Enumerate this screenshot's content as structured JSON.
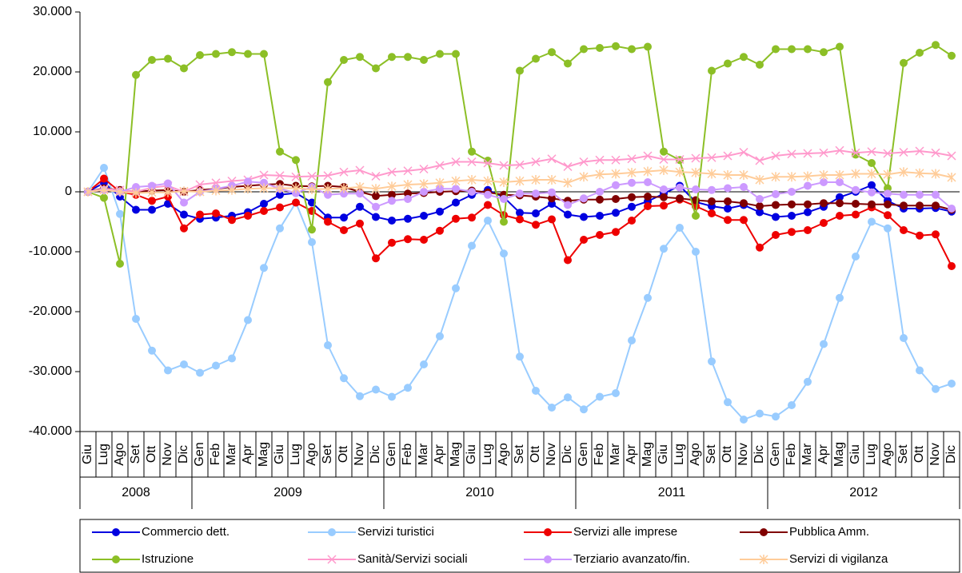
{
  "chart_data": {
    "type": "line",
    "category_groups": [
      {
        "label": "2008",
        "categories": [
          "Giu",
          "Lug",
          "Ago",
          "Set",
          "Ott",
          "Nov",
          "Dic"
        ]
      },
      {
        "label": "2009",
        "categories": [
          "Gen",
          "Feb",
          "Mar",
          "Apr",
          "Mag",
          "Giu",
          "Lug",
          "Ago",
          "Set",
          "Ott",
          "Nov",
          "Dic"
        ]
      },
      {
        "label": "2010",
        "categories": [
          "Gen",
          "Feb",
          "Mar",
          "Apr",
          "Mag",
          "Giu",
          "Lug",
          "Ago",
          "Set",
          "Ott",
          "Nov",
          "Dic"
        ]
      },
      {
        "label": "2011",
        "categories": [
          "Gen",
          "Feb",
          "Mar",
          "Apr",
          "Mag",
          "Giu",
          "Lug",
          "Ago",
          "Set",
          "Ott",
          "Nov",
          "Dic"
        ]
      },
      {
        "label": "2012",
        "categories": [
          "Gen",
          "Feb",
          "Mar",
          "Apr",
          "Mag",
          "Giu",
          "Lug",
          "Ago",
          "Set",
          "Ott",
          "Nov",
          "Dic"
        ]
      }
    ],
    "ylim": [
      -40000,
      30000
    ],
    "yticks": [
      {
        "value": -40000,
        "label": "-40.000"
      },
      {
        "value": -30000,
        "label": "-30.000"
      },
      {
        "value": -20000,
        "label": "-20.000"
      },
      {
        "value": -10000,
        "label": "-10.000"
      },
      {
        "value": 0,
        "label": "0"
      },
      {
        "value": 10000,
        "label": "10.000"
      },
      {
        "value": 20000,
        "label": "20.000"
      },
      {
        "value": 30000,
        "label": "30.000"
      }
    ],
    "grid": false,
    "series": [
      {
        "name": "Commercio dett.",
        "color": "#0000e0",
        "marker": "circle",
        "values": [
          0,
          1500,
          -800,
          -3000,
          -3000,
          -2000,
          -3800,
          -4500,
          -4300,
          -4000,
          -3400,
          -2000,
          -500,
          -200,
          -1800,
          -4300,
          -4300,
          -2500,
          -4200,
          -4800,
          -4500,
          -4000,
          -3300,
          -1800,
          -500,
          300,
          -900,
          -3500,
          -3600,
          -2000,
          -3800,
          -4200,
          -4000,
          -3500,
          -2500,
          -1600,
          -300,
          1000,
          -1700,
          -2400,
          -2800,
          -2200,
          -3400,
          -4200,
          -4000,
          -3400,
          -2500,
          -900,
          0,
          1100,
          -1500,
          -2800,
          -2800,
          -2700,
          -3300
        ]
      },
      {
        "name": "Servizi turistici",
        "color": "#99ccff",
        "marker": "circle",
        "values": [
          0,
          4000,
          -3700,
          -21200,
          -26500,
          -29800,
          -28800,
          -30200,
          -29000,
          -27800,
          -21400,
          -12700,
          -6100,
          -1800,
          -8400,
          -25600,
          -31100,
          -34100,
          -33000,
          -34200,
          -32700,
          -28800,
          -24100,
          -16100,
          -9000,
          -4800,
          -10300,
          -27500,
          -33200,
          -36000,
          -34300,
          -36300,
          -34200,
          -33600,
          -24800,
          -17700,
          -9500,
          -6000,
          -10000,
          -28300,
          -35100,
          -38000,
          -37000,
          -37500,
          -35600,
          -31700,
          -25400,
          -17700,
          -10800,
          -5000,
          -6100,
          -24400,
          -29800,
          -32900,
          -32000
        ]
      },
      {
        "name": "Servizi alle imprese",
        "color": "#ee0000",
        "marker": "circle",
        "values": [
          0,
          2200,
          0,
          -500,
          -1500,
          -800,
          -6100,
          -3800,
          -3600,
          -4700,
          -4000,
          -3200,
          -2600,
          -1800,
          -3200,
          -5000,
          -6400,
          -5300,
          -11100,
          -8500,
          -7900,
          -8000,
          -6500,
          -4500,
          -4300,
          -2200,
          -3900,
          -4600,
          -5500,
          -4600,
          -11400,
          -8000,
          -7200,
          -6700,
          -4800,
          -2400,
          -2300,
          -1300,
          -2400,
          -3600,
          -4700,
          -4700,
          -9300,
          -7200,
          -6700,
          -6400,
          -5200,
          -4000,
          -3800,
          -2600,
          -3900,
          -6400,
          -7300,
          -7100,
          -12400
        ]
      },
      {
        "name": "Pubblica Amm.",
        "color": "#800000",
        "marker": "circle",
        "values": [
          0,
          600,
          300,
          0,
          200,
          300,
          0,
          300,
          500,
          800,
          1000,
          1200,
          1300,
          1000,
          900,
          1000,
          800,
          0,
          -700,
          -500,
          -300,
          -200,
          0,
          100,
          200,
          -100,
          -500,
          -600,
          -800,
          -1100,
          -1500,
          -1300,
          -1300,
          -1200,
          -900,
          -800,
          -900,
          -1100,
          -1400,
          -1600,
          -1600,
          -1900,
          -2400,
          -2200,
          -2100,
          -2100,
          -1900,
          -1900,
          -2000,
          -2100,
          -2100,
          -2300,
          -2300,
          -2300,
          -3000
        ]
      },
      {
        "name": "Istruzione",
        "color": "#8cbf26",
        "marker": "circle",
        "values": [
          0,
          -1000,
          -12000,
          19500,
          22000,
          22200,
          20600,
          22800,
          23000,
          23300,
          23000,
          23000,
          6700,
          5300,
          -6300,
          18300,
          22000,
          22500,
          20600,
          22500,
          22500,
          22000,
          23000,
          23000,
          6700,
          5200,
          -5000,
          20200,
          22200,
          23300,
          21400,
          23800,
          24000,
          24300,
          23800,
          24200,
          6700,
          5300,
          -4000,
          20200,
          21400,
          22500,
          21200,
          23800,
          23800,
          23800,
          23300,
          24200,
          6200,
          4800,
          600,
          21500,
          23200,
          24500,
          22700
        ]
      },
      {
        "name": "Sanità/Servizi sociali",
        "color": "#ff99cc",
        "marker": "x",
        "values": [
          0,
          500,
          300,
          0,
          700,
          1000,
          0,
          1200,
          1500,
          1800,
          2000,
          2800,
          2700,
          2500,
          2600,
          2700,
          3300,
          3600,
          2600,
          3300,
          3500,
          3800,
          4400,
          5000,
          5000,
          4800,
          4400,
          4500,
          5000,
          5500,
          4200,
          5000,
          5300,
          5300,
          5500,
          6000,
          5400,
          5400,
          5600,
          5700,
          6000,
          6600,
          5200,
          6000,
          6300,
          6400,
          6500,
          6900,
          6500,
          6700,
          6400,
          6600,
          6800,
          6500,
          6000
        ]
      },
      {
        "name": "Terziario avanzato/fin.",
        "color": "#cc99ff",
        "marker": "circle",
        "values": [
          0,
          300,
          0,
          800,
          1000,
          1400,
          -1800,
          0,
          500,
          1000,
          1700,
          1500,
          500,
          -200,
          800,
          -500,
          -300,
          -300,
          -2500,
          -1500,
          -1200,
          0,
          500,
          500,
          0,
          -500,
          -1200,
          -300,
          -300,
          -100,
          -2200,
          -1100,
          0,
          1100,
          1500,
          1600,
          400,
          700,
          400,
          300,
          600,
          800,
          -1200,
          -400,
          0,
          1000,
          1600,
          1600,
          300,
          -100,
          -300,
          -500,
          -500,
          -500,
          -2800
        ]
      },
      {
        "name": "Servizi di vigilanza",
        "color": "#ffcc99",
        "marker": "star",
        "values": [
          0,
          300,
          0,
          -200,
          -100,
          -100,
          100,
          0,
          200,
          300,
          500,
          600,
          600,
          600,
          400,
          500,
          600,
          800,
          500,
          900,
          1200,
          1300,
          1500,
          1800,
          2000,
          1800,
          1600,
          1800,
          2000,
          2000,
          1500,
          2500,
          2900,
          3000,
          3200,
          3400,
          3600,
          3300,
          3200,
          3000,
          2800,
          2800,
          2000,
          2500,
          2500,
          2600,
          2800,
          2800,
          3000,
          3000,
          2900,
          3300,
          3100,
          3000,
          2400
        ]
      }
    ]
  }
}
